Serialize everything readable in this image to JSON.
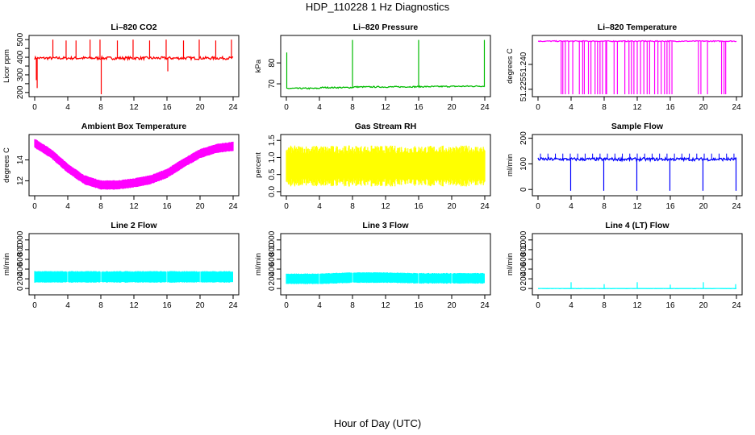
{
  "title": "HDP_110228  1 Hz Diagnostics",
  "footer": "Hour of Day (UTC)",
  "chart_data": [
    {
      "type": "line",
      "title": "Li–820 CO2",
      "ylabel": "Licor ppm",
      "color": "#ff0000",
      "xlim": [
        0,
        24
      ],
      "xticks": [
        "0",
        "4",
        "8",
        "12",
        "16",
        "20",
        "24"
      ],
      "ylim": [
        190,
        510
      ],
      "yticks": [
        200,
        250,
        300,
        350,
        400,
        450,
        500
      ],
      "ytick_labels": [
        "200",
        "",
        "300",
        "",
        "400",
        "",
        "500"
      ],
      "baseline": [
        [
          0,
          395
        ],
        [
          24,
          395
        ]
      ],
      "noise": 8,
      "spikes": [
        [
          0.2,
          270
        ],
        [
          0.3,
          225
        ],
        [
          2.2,
          500
        ],
        [
          3.8,
          495
        ],
        [
          5.0,
          495
        ],
        [
          6.7,
          500
        ],
        [
          7.9,
          500
        ],
        [
          8.05,
          190
        ],
        [
          10.0,
          495
        ],
        [
          11.9,
          500
        ],
        [
          13.9,
          495
        ],
        [
          15.9,
          500
        ],
        [
          16.1,
          320
        ],
        [
          18.0,
          495
        ],
        [
          19.9,
          500
        ],
        [
          21.9,
          495
        ],
        [
          23.8,
          500
        ]
      ]
    },
    {
      "type": "line",
      "title": "Li–820 Pressure",
      "ylabel": "kPa",
      "color": "#00bb00",
      "xlim": [
        0,
        24
      ],
      "xticks": [
        "0",
        "4",
        "8",
        "12",
        "16",
        "20",
        "24"
      ],
      "ylim": [
        65,
        92
      ],
      "yticks": [
        70,
        80
      ],
      "ytick_labels": [
        "70",
        "80"
      ],
      "baseline": [
        [
          0,
          67.8
        ],
        [
          4,
          67.8
        ],
        [
          4.1,
          68.2
        ],
        [
          8,
          68.2
        ],
        [
          8.1,
          68.5
        ],
        [
          12,
          68.5
        ],
        [
          16,
          68.6
        ],
        [
          24,
          68.9
        ]
      ],
      "noise": 0.3,
      "spikes": [
        [
          0.05,
          85
        ],
        [
          8.0,
          91
        ],
        [
          16.0,
          91
        ],
        [
          23.95,
          91
        ]
      ]
    },
    {
      "type": "line",
      "title": "Li–820 Temperature",
      "ylabel": "degrees C",
      "color": "#ff00ff",
      "xlim": [
        0,
        24
      ],
      "xticks": [
        "0",
        "4",
        "8",
        "12",
        "16",
        "20",
        "24"
      ],
      "ylim": [
        51.222,
        51.256
      ],
      "yticks": [
        51.225,
        51.24
      ],
      "ytick_labels": [
        "51.225",
        "51.240"
      ],
      "baseline": [
        [
          0,
          51.254
        ],
        [
          24,
          51.254
        ]
      ],
      "noise": 0.0003,
      "drops_to": 51.222,
      "drops": [
        2.8,
        3.0,
        3.3,
        3.7,
        4.2,
        5.0,
        5.4,
        5.6,
        6.1,
        6.4,
        6.9,
        7.2,
        7.5,
        7.8,
        8.2,
        8.3,
        9.2,
        9.6,
        10.5,
        11.0,
        11.3,
        11.6,
        12.0,
        12.4,
        12.8,
        13.2,
        13.5,
        14.1,
        14.5,
        14.9,
        15.3,
        15.6,
        15.9,
        16.2,
        19.4,
        19.7,
        20.5,
        22.2,
        22.5,
        22.7
      ]
    },
    {
      "type": "band",
      "title": "Ambient Box Temperature",
      "ylabel": "degrees C",
      "color": "#ff00ff",
      "xlim": [
        0,
        24
      ],
      "xticks": [
        "0",
        "4",
        "8",
        "12",
        "16",
        "20",
        "24"
      ],
      "ylim": [
        10.8,
        16.2
      ],
      "yticks": [
        12,
        14
      ],
      "ytick_labels": [
        "12",
        "14"
      ],
      "center": [
        [
          0,
          15.6
        ],
        [
          2,
          14.6
        ],
        [
          4,
          13.2
        ],
        [
          6,
          12.1
        ],
        [
          8,
          11.6
        ],
        [
          10,
          11.6
        ],
        [
          12,
          11.8
        ],
        [
          14,
          12.1
        ],
        [
          16,
          12.7
        ],
        [
          18,
          13.7
        ],
        [
          20,
          14.6
        ],
        [
          22,
          15.1
        ],
        [
          24,
          15.3
        ]
      ],
      "halfwidth": 0.45
    },
    {
      "type": "band",
      "title": "Gas Stream RH",
      "ylabel": "percent",
      "color": "#ffff00",
      "xlim": [
        0,
        24
      ],
      "xticks": [
        "0",
        "4",
        "8",
        "12",
        "16",
        "20",
        "24"
      ],
      "ylim": [
        -0.05,
        1.6
      ],
      "yticks": [
        0,
        0.5,
        1,
        1.5
      ],
      "ytick_labels": [
        "0.0",
        "0.5",
        "1.0",
        "1.5"
      ],
      "center": [
        [
          0,
          0.75
        ],
        [
          24,
          0.75
        ]
      ],
      "halfwidth": 0.6,
      "noise_band": true
    },
    {
      "type": "line",
      "title": "Sample Flow",
      "ylabel": "ml/min",
      "color": "#0000ff",
      "xlim": [
        0,
        24
      ],
      "xticks": [
        "0",
        "4",
        "8",
        "12",
        "16",
        "20",
        "24"
      ],
      "ylim": [
        -15,
        205
      ],
      "yticks": [
        0,
        100,
        200
      ],
      "ytick_labels": [
        "0",
        "100",
        "200"
      ],
      "baseline": [
        [
          0,
          118
        ],
        [
          24,
          118
        ]
      ],
      "noise": 6,
      "spikes": [
        [
          3.95,
          -5
        ],
        [
          7.95,
          -5
        ],
        [
          11.95,
          -5
        ],
        [
          15.95,
          -5
        ],
        [
          19.95,
          -5
        ],
        [
          23.95,
          -5
        ]
      ],
      "ticks_up": true
    },
    {
      "type": "band",
      "title": "Line 2 Flow",
      "ylabel": "ml/min",
      "color": "#00ffff",
      "xlim": [
        0,
        24
      ],
      "xticks": [
        "0",
        "4",
        "8",
        "12",
        "16",
        "20",
        "24"
      ],
      "ylim": [
        -80,
        1080
      ],
      "yticks": [
        0,
        200,
        400,
        600,
        800,
        1000
      ],
      "ytick_labels": [
        "0",
        "200",
        "400",
        "600",
        "800",
        "1000"
      ],
      "center": [
        [
          0,
          240
        ],
        [
          24,
          240
        ]
      ],
      "halfwidth": 120,
      "gaps": [
        4,
        8,
        12,
        16,
        20,
        24
      ]
    },
    {
      "type": "band",
      "title": "Line 3 Flow",
      "ylabel": "ml/min",
      "color": "#00ffff",
      "xlim": [
        0,
        24
      ],
      "xticks": [
        "0",
        "4",
        "8",
        "12",
        "16",
        "20",
        "24"
      ],
      "ylim": [
        -80,
        1080
      ],
      "yticks": [
        0,
        200,
        400,
        600,
        800,
        1000
      ],
      "ytick_labels": [
        "0",
        "200",
        "400",
        "600",
        "800",
        "1000"
      ],
      "center": [
        [
          0,
          200
        ],
        [
          4,
          200
        ],
        [
          8,
          225
        ],
        [
          12,
          225
        ],
        [
          16,
          210
        ],
        [
          24,
          210
        ]
      ],
      "halfwidth": 110,
      "gaps": [
        4,
        8,
        12,
        16,
        20,
        24
      ]
    },
    {
      "type": "line",
      "title": "Line 4 (LT) Flow",
      "ylabel": "ml/min",
      "color": "#00ffff",
      "xlim": [
        0,
        24
      ],
      "xticks": [
        "0",
        "4",
        "8",
        "12",
        "16",
        "20",
        "24"
      ],
      "ylim": [
        -80,
        1080
      ],
      "yticks": [
        0,
        200,
        400,
        600,
        800,
        1000
      ],
      "ytick_labels": [
        "0",
        "200",
        "400",
        "600",
        "800",
        "1000"
      ],
      "baseline": [
        [
          0,
          0
        ],
        [
          24,
          0
        ]
      ],
      "noise": 2,
      "spikes": [
        [
          4.0,
          130
        ],
        [
          8.0,
          90
        ],
        [
          12.0,
          130
        ],
        [
          16.0,
          80
        ],
        [
          20.0,
          130
        ],
        [
          23.9,
          90
        ]
      ]
    }
  ]
}
